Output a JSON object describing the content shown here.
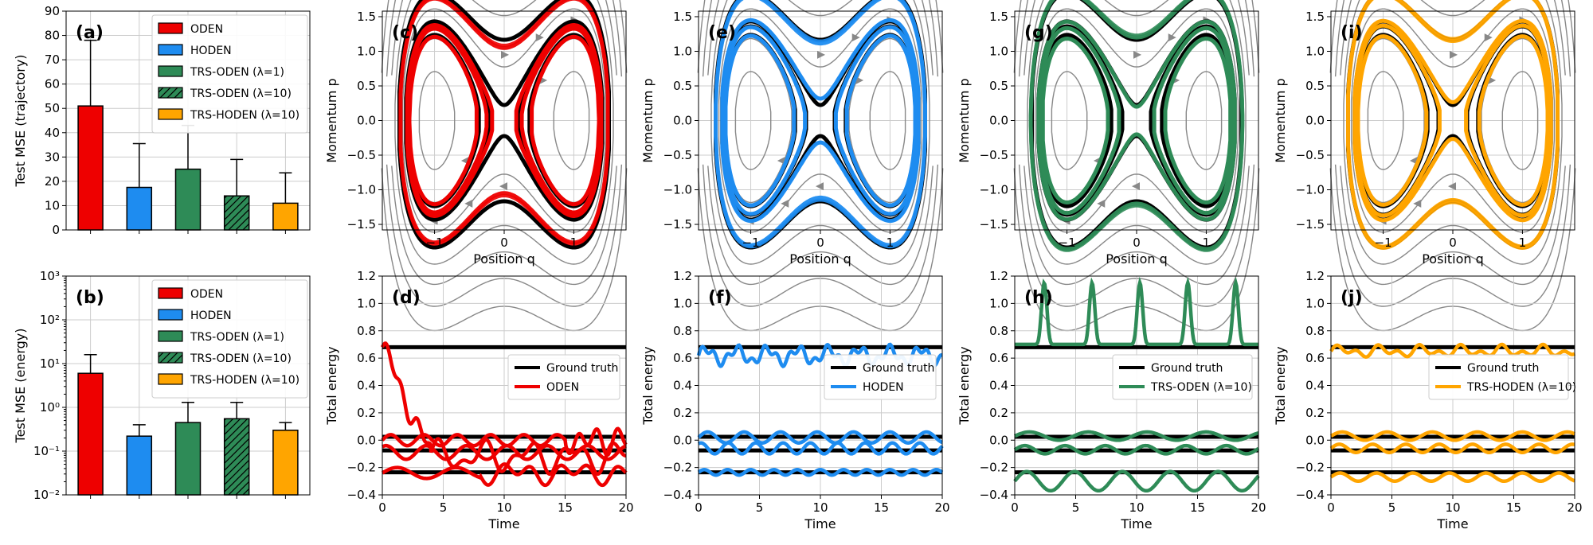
{
  "colors": {
    "ODEN": "#ee0000",
    "HODEN": "#1e8cf0",
    "TRS-ODEN (λ=1)": "#2e8b57",
    "TRS-ODEN (λ=10)": "#2e8b57",
    "TRS-HODEN (λ=10)": "#ffa500",
    "gt": "#000000",
    "stream": "#888888",
    "grid": "#cccccc"
  },
  "chart_data": [
    {
      "panel": "(a)",
      "type": "bar",
      "title": "",
      "ylabel": "Test MSE (trajectory)",
      "xlabel": "",
      "ylim": [
        0,
        90
      ],
      "yscale": "linear",
      "yticks": [
        "0",
        "10",
        "20",
        "30",
        "40",
        "50",
        "60",
        "70",
        "80",
        "90"
      ],
      "categories": [
        "ODEN",
        "HODEN",
        "TRS-ODEN (λ=1)",
        "TRS-ODEN (λ=10)",
        "TRS-HODEN (λ=10)"
      ],
      "values": [
        51,
        17.5,
        25,
        14,
        11
      ],
      "errors": [
        27,
        18,
        18,
        15,
        12.5
      ],
      "hatched": [
        false,
        false,
        false,
        true,
        false
      ],
      "legend": [
        "ODEN",
        "HODEN",
        "TRS-ODEN (λ=1)",
        "TRS-ODEN (λ=10)",
        "TRS-HODEN (λ=10)"
      ]
    },
    {
      "panel": "(b)",
      "type": "bar",
      "ylabel": "Test MSE (energy)",
      "yscale": "log",
      "ylim": [
        0.01,
        1000
      ],
      "yticks": [
        "10⁻²",
        "10⁻¹",
        "10⁰",
        "10¹",
        "10²",
        "10³"
      ],
      "categories": [
        "ODEN",
        "HODEN",
        "TRS-ODEN (λ=1)",
        "TRS-ODEN (λ=10)",
        "TRS-HODEN (λ=10)"
      ],
      "values": [
        6,
        0.22,
        0.45,
        0.55,
        0.3
      ],
      "errors_upper": [
        16,
        0.4,
        1.3,
        1.3,
        0.45
      ],
      "hatched": [
        false,
        false,
        false,
        true,
        false
      ],
      "legend": [
        "ODEN",
        "HODEN",
        "TRS-ODEN (λ=1)",
        "TRS-ODEN (λ=10)",
        "TRS-HODEN (λ=10)"
      ]
    },
    {
      "panel": "(c)",
      "type": "line",
      "model": "ODEN",
      "xlabel": "Position q",
      "ylabel": "Momentum p",
      "xlim": [
        -1.75,
        1.75
      ],
      "ylim": [
        -1.58,
        1.58
      ],
      "xticks": [
        "−1",
        "0",
        "1"
      ],
      "yticks": [
        "−1.5",
        "−1.0",
        "−0.5",
        "0.0",
        "0.5",
        "1.0",
        "1.5"
      ]
    },
    {
      "panel": "(e)",
      "type": "line",
      "model": "HODEN",
      "xlabel": "Position q",
      "ylabel": "Momentum p",
      "xlim": [
        -1.75,
        1.75
      ],
      "ylim": [
        -1.58,
        1.58
      ],
      "xticks": [
        "−1",
        "0",
        "1"
      ],
      "yticks": [
        "−1.5",
        "−1.0",
        "−0.5",
        "0.0",
        "0.5",
        "1.0",
        "1.5"
      ]
    },
    {
      "panel": "(g)",
      "type": "line",
      "model": "TRS-ODEN (λ=10)",
      "xlabel": "Position q",
      "ylabel": "Momentum p",
      "xlim": [
        -1.75,
        1.75
      ],
      "ylim": [
        -1.58,
        1.58
      ],
      "xticks": [
        "−1",
        "0",
        "1"
      ],
      "yticks": [
        "−1.5",
        "−1.0",
        "−0.5",
        "0.0",
        "0.5",
        "1.0",
        "1.5"
      ]
    },
    {
      "panel": "(i)",
      "type": "line",
      "model": "TRS-HODEN (λ=10)",
      "xlabel": "Position q",
      "ylabel": "Momentum p",
      "xlim": [
        -1.75,
        1.75
      ],
      "ylim": [
        -1.58,
        1.58
      ],
      "xticks": [
        "−1",
        "0",
        "1"
      ],
      "yticks": [
        "−1.5",
        "−1.0",
        "−0.5",
        "0.0",
        "0.5",
        "1.0",
        "1.5"
      ]
    },
    {
      "panel": "(d)",
      "type": "line",
      "model": "ODEN",
      "xlabel": "Time",
      "ylabel": "Total energy",
      "xlim": [
        0,
        20
      ],
      "ylim": [
        -0.4,
        1.2
      ],
      "xticks": [
        "0",
        "5",
        "10",
        "15",
        "20"
      ],
      "yticks": [
        "−0.4",
        "−0.2",
        "0.0",
        "0.2",
        "0.4",
        "0.6",
        "0.8",
        "1.0",
        "1.2"
      ],
      "ground_truth": [
        0.68,
        0.025,
        -0.075,
        -0.235
      ],
      "legend": [
        "Ground truth",
        "ODEN"
      ]
    },
    {
      "panel": "(f)",
      "type": "line",
      "model": "HODEN",
      "xlabel": "Time",
      "ylabel": "Total energy",
      "xlim": [
        0,
        20
      ],
      "ylim": [
        -0.4,
        1.2
      ],
      "xticks": [
        "0",
        "5",
        "10",
        "15",
        "20"
      ],
      "yticks": [
        "−0.4",
        "−0.2",
        "0.0",
        "0.2",
        "0.4",
        "0.6",
        "0.8",
        "1.0",
        "1.2"
      ],
      "ground_truth": [
        0.68,
        0.025,
        -0.075,
        -0.235
      ],
      "legend": [
        "Ground truth",
        "HODEN"
      ]
    },
    {
      "panel": "(h)",
      "type": "line",
      "model": "TRS-ODEN (λ=10)",
      "xlabel": "Time",
      "ylabel": "Total energy",
      "xlim": [
        0,
        20
      ],
      "ylim": [
        -0.4,
        1.2
      ],
      "xticks": [
        "0",
        "5",
        "10",
        "15",
        "20"
      ],
      "yticks": [
        "−0.4",
        "−0.2",
        "0.0",
        "0.2",
        "0.4",
        "0.6",
        "0.8",
        "1.0",
        "1.2"
      ],
      "ground_truth": [
        0.68,
        0.025,
        -0.075,
        -0.235
      ],
      "legend": [
        "Ground truth",
        "TRS-ODEN (λ=10)"
      ]
    },
    {
      "panel": "(j)",
      "type": "line",
      "model": "TRS-HODEN (λ=10)",
      "xlabel": "Time",
      "ylabel": "Total energy",
      "xlim": [
        0,
        20
      ],
      "ylim": [
        -0.4,
        1.2
      ],
      "xticks": [
        "0",
        "5",
        "10",
        "15",
        "20"
      ],
      "yticks": [
        "−0.4",
        "−0.2",
        "0.0",
        "0.2",
        "0.4",
        "0.6",
        "0.8",
        "1.0",
        "1.2"
      ],
      "ground_truth": [
        0.68,
        0.025,
        -0.075,
        -0.235
      ],
      "legend": [
        "Ground truth",
        "TRS-HODEN (λ=10)"
      ]
    }
  ]
}
